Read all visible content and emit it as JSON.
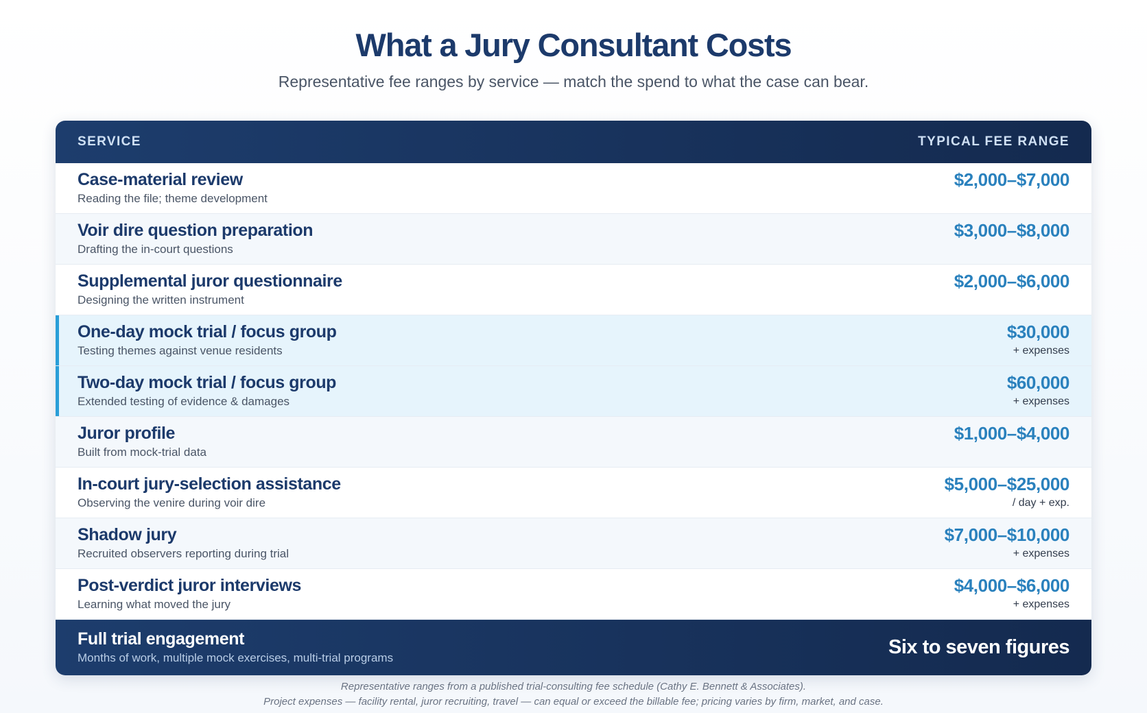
{
  "title": "What a Jury Consultant Costs",
  "subtitle": "Representative fee ranges by service — match the spend to what the case can bear.",
  "table": {
    "header": {
      "service": "SERVICE",
      "fee": "TYPICAL FEE RANGE"
    },
    "rows": [
      {
        "name": "Case-material review",
        "desc": "Reading the file; theme development",
        "fee": "$2,000–$7,000",
        "note": ""
      },
      {
        "name": "Voir dire question preparation",
        "desc": "Drafting the in-court questions",
        "fee": "$3,000–$8,000",
        "note": ""
      },
      {
        "name": "Supplemental juror questionnaire",
        "desc": "Designing the written instrument",
        "fee": "$2,000–$6,000",
        "note": ""
      },
      {
        "name": "One-day mock trial / focus group",
        "desc": "Testing themes against venue residents",
        "fee": "$30,000",
        "note": "+ expenses"
      },
      {
        "name": "Two-day mock trial / focus group",
        "desc": "Extended testing of evidence & damages",
        "fee": "$60,000",
        "note": "+ expenses"
      },
      {
        "name": "Juror profile",
        "desc": "Built from mock-trial data",
        "fee": "$1,000–$4,000",
        "note": ""
      },
      {
        "name": "In-court jury-selection assistance",
        "desc": "Observing the venire during voir dire",
        "fee": "$5,000–$25,000",
        "note": "/ day + exp."
      },
      {
        "name": "Shadow jury",
        "desc": "Recruited observers reporting during trial",
        "fee": "$7,000–$10,000",
        "note": "+ expenses"
      },
      {
        "name": "Post-verdict juror interviews",
        "desc": "Learning what moved the jury",
        "fee": "$4,000–$6,000",
        "note": "+ expenses"
      }
    ],
    "footer": {
      "name": "Full trial engagement",
      "desc": "Months of work, multiple mock exercises, multi-trial programs",
      "value": "Six to seven figures"
    }
  },
  "footnotes": {
    "line1": "Representative ranges from a published trial-consulting fee schedule (Cathy E. Bennett & Associates).",
    "line2": "Project expenses — facility rental, juror recruiting, travel — can equal or exceed the billable fee; pricing varies by firm, market, and case."
  },
  "colors": {
    "title": "#1c3a6b",
    "accent": "#2a9ed8",
    "fee": "#2a81bd",
    "header_bg": "#1d3d6d"
  }
}
